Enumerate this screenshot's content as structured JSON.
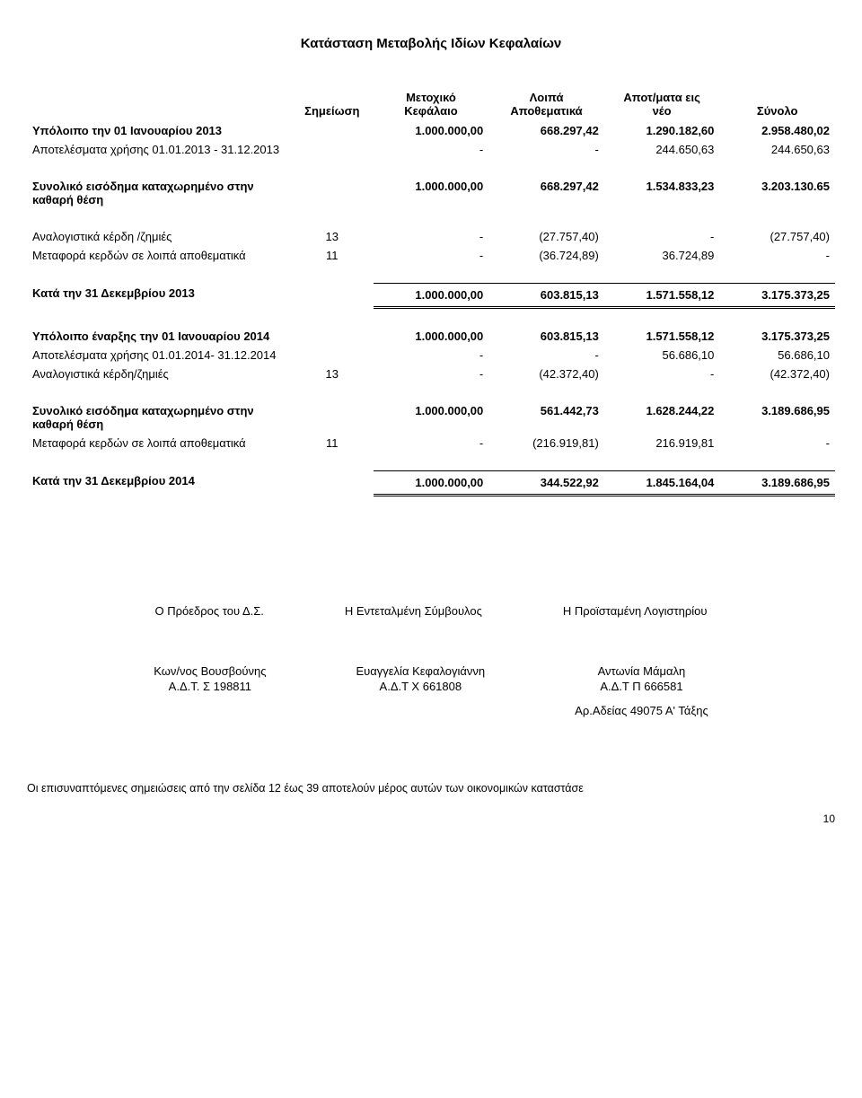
{
  "title": "Κατάσταση Μεταβολής Ιδίων Κεφαλαίων",
  "columns": {
    "note": "Σημείωση",
    "capital": "Μετοχικό\nΚεφάλαιο",
    "reserves": "Λοιπά\nΑποθεματικά",
    "retained": "Αποτ/ματα εις\nνέο",
    "total": "Σύνολο"
  },
  "rows": [
    {
      "label": "Υπόλοιπο  την 01 Ιανουαρίου 2013",
      "bold": true,
      "note": "",
      "capital": "1.000.000,00",
      "reserves": "668.297,42",
      "retained": "1.290.182,60",
      "total": "2.958.480,02"
    },
    {
      "label": "Αποτελέσματα χρήσης 01.01.2013 - 31.12.2013",
      "note": "",
      "capital": "-",
      "reserves": "-",
      "retained": "244.650,63",
      "total": "244.650,63"
    },
    {
      "spacer": true
    },
    {
      "label": "Συνολικό εισόδημα καταχωρημένο στην καθαρή θέση",
      "bold": true,
      "note": "",
      "capital": "1.000.000,00",
      "reserves": "668.297,42",
      "retained": "1.534.833,23",
      "total": "3.203.130.65"
    },
    {
      "spacer": true
    },
    {
      "label": "Αναλογιστικά κέρδη /ζημιές",
      "note": "13",
      "capital": "-",
      "reserves": "(27.757,40)",
      "retained": "-",
      "total": "(27.757,40)"
    },
    {
      "label": "Μεταφορά κερδών σε λοιπά αποθεματικά",
      "note": "11",
      "capital": "-",
      "reserves": "(36.724,89)",
      "retained": "36.724,89",
      "total": "-"
    },
    {
      "spacer": true
    },
    {
      "label": "Κατά την 31 Δεκεμβρίου 2013",
      "bold": true,
      "double": true,
      "note": "",
      "capital": "1.000.000,00",
      "reserves": "603.815,13",
      "retained": "1.571.558,12",
      "total": "3.175.373,25"
    },
    {
      "spacer": true
    },
    {
      "label": "Υπόλοιπο έναρξης την 01 Ιανουαρίου 2014",
      "bold": true,
      "note": "",
      "capital": "1.000.000,00",
      "reserves": "603.815,13",
      "retained": "1.571.558,12",
      "total": "3.175.373,25"
    },
    {
      "label": "Αποτελέσματα χρήσης 01.01.2014- 31.12.2014",
      "note": "",
      "capital": "-",
      "reserves": "-",
      "retained": "56.686,10",
      "total": "56.686,10"
    },
    {
      "label": "Αναλογιστικά κέρδη/ζημιές",
      "note": "13",
      "capital": "-",
      "reserves": "(42.372,40)",
      "retained": "-",
      "total": "(42.372,40)"
    },
    {
      "spacer": true
    },
    {
      "label": "Συνολικό εισόδημα καταχωρημένο στην καθαρή θέση",
      "bold": true,
      "note": "",
      "capital": "1.000.000,00",
      "reserves": "561.442,73",
      "retained": "1.628.244,22",
      "total": "3.189.686,95"
    },
    {
      "label": "Μεταφορά κερδών σε λοιπά αποθεματικά",
      "note": "11",
      "capital": "-",
      "reserves": "(216.919,81)",
      "retained": "216.919,81",
      "total": "-"
    },
    {
      "spacer": true
    },
    {
      "label": "Κατά την 31 Δεκεμβρίου 2014",
      "bold": true,
      "double": true,
      "note": "",
      "capital": "1.000.000,00",
      "reserves": "344.522,92",
      "retained": "1.845.164,04",
      "total": "3.189.686,95"
    }
  ],
  "sig_titles": {
    "a": "Ο Πρόεδρος του Δ.Σ.",
    "b": "Η Εντεταλμένη Σύμβουλος",
    "c": "Η Προϊσταμένη Λογιστηρίου"
  },
  "sig_names": {
    "a1": "Κων/νος Βουσβούνης",
    "a2": "Α.Δ.Τ. Σ 198811",
    "b1": "Ευαγγελία Κεφαλογιάννη",
    "b2": "Α.Δ.Τ  Χ 661808",
    "c1": "Αντωνία Μάμαλη",
    "c2": "Α.Δ.Τ Π 666581",
    "c3": "Αρ.Αδείας 49075  Α' Τάξης"
  },
  "footnote": "Οι επισυναπτόμενες σημειώσεις από την σελίδα 12 έως 39 αποτελούν μέρος αυτών των οικονομικών καταστάσε",
  "page": "10"
}
